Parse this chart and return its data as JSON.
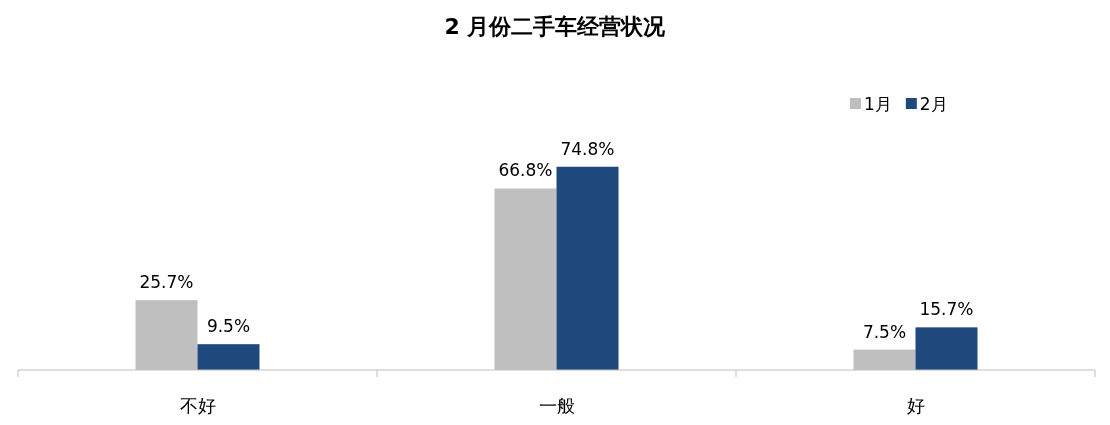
{
  "chart_data": {
    "type": "bar",
    "title": "2 月份二手车经营状况",
    "categories": [
      "不好",
      "一般",
      "好"
    ],
    "series": [
      {
        "name": "1月",
        "color": "#bfbfbf",
        "values": [
          25.7,
          66.8,
          7.5
        ],
        "value_labels": [
          "25.7%",
          "66.8%",
          "7.5%"
        ]
      },
      {
        "name": "2月",
        "color": "#1f497d",
        "values": [
          9.5,
          74.8,
          15.7
        ],
        "value_labels": [
          "9.5%",
          "74.8%",
          "15.7%"
        ]
      }
    ],
    "legend": "top right"
  }
}
